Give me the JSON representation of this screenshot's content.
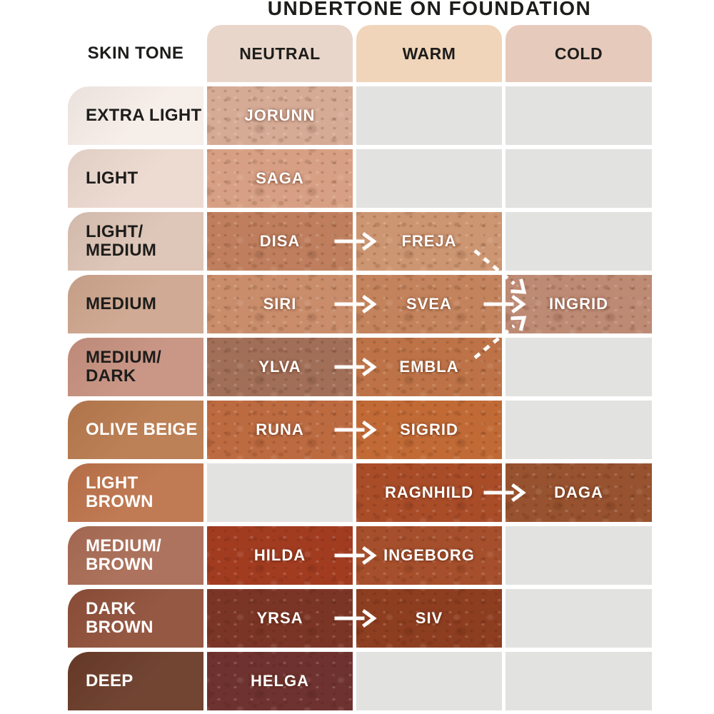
{
  "title": "UNDERTONE ON FOUNDATION",
  "skin_tone_header": "SKIN TONE",
  "colors": {
    "page_bg": "#ffffff",
    "empty": "#e2e2e1",
    "arrow": "#ffffff",
    "text_dark": "#1d1d1b",
    "text_light": "#ffffff"
  },
  "undertone_headers": [
    {
      "label": "NEUTRAL",
      "color": "#e9d6ca"
    },
    {
      "label": "WARM",
      "color": "#f0d5ba"
    },
    {
      "label": "COLD",
      "color": "#e6cabb"
    }
  ],
  "rows": [
    {
      "skin_tone": "EXTRA LIGHT",
      "label_color": "#f6ede8",
      "label_text": "#1d1d1b",
      "cells": {
        "neutral": {
          "name": "JORUNN",
          "color": "#d5ab96"
        },
        "warm": null,
        "cold": null
      }
    },
    {
      "skin_tone": "LIGHT",
      "label_color": "#ecd9cf",
      "label_text": "#1d1d1b",
      "cells": {
        "neutral": {
          "name": "SAGA",
          "color": "#d7a084"
        },
        "warm": null,
        "cold": null
      }
    },
    {
      "skin_tone": "LIGHT/\nMEDIUM",
      "label_color": "#dcc3b4",
      "label_text": "#1d1d1b",
      "cells": {
        "neutral": {
          "name": "DISA",
          "color": "#bf7f5e"
        },
        "warm": {
          "name": "FREJA",
          "color": "#cd9672"
        },
        "cold": null
      }
    },
    {
      "skin_tone": "MEDIUM",
      "label_color": "#cfa68f",
      "label_text": "#1d1d1b",
      "cells": {
        "neutral": {
          "name": "SIRI",
          "color": "#c98d6b"
        },
        "warm": {
          "name": "SVEA",
          "color": "#c3835c"
        },
        "cold": {
          "name": "INGRID",
          "color": "#bd8a74"
        }
      }
    },
    {
      "skin_tone": "MEDIUM/\nDARK",
      "label_color": "#c79180",
      "label_text": "#1d1d1b",
      "cells": {
        "neutral": {
          "name": "YLVA",
          "color": "#a16f58"
        },
        "warm": {
          "name": "EMBLA",
          "color": "#bd7347"
        },
        "cold": null
      }
    },
    {
      "skin_tone": "OLIVE BEIGE",
      "label_color": "#b97a4e",
      "label_text": "#ffffff",
      "cells": {
        "neutral": {
          "name": "RUNA",
          "color": "#bc6a40"
        },
        "warm": {
          "name": "SIGRID",
          "color": "#c16a36"
        },
        "cold": null
      }
    },
    {
      "skin_tone": "LIGHT BROWN",
      "label_color": "#bd734b",
      "label_text": "#ffffff",
      "cells": {
        "neutral": null,
        "warm": {
          "name": "RAGNHILD",
          "color": "#a94c28"
        },
        "cold": {
          "name": "DAGA",
          "color": "#97522f"
        }
      }
    },
    {
      "skin_tone": "MEDIUM/\nBROWN",
      "label_color": "#a96c55",
      "label_text": "#ffffff",
      "cells": {
        "neutral": {
          "name": "HILDA",
          "color": "#a23c21"
        },
        "warm": {
          "name": "INGEBORG",
          "color": "#a64f2c"
        },
        "cold": null
      }
    },
    {
      "skin_tone": "DARK BROWN",
      "label_color": "#8f4f39",
      "label_text": "#ffffff",
      "cells": {
        "neutral": {
          "name": "YRSA",
          "color": "#7b3526"
        },
        "warm": {
          "name": "SIV",
          "color": "#8d3d20"
        },
        "cold": null
      }
    },
    {
      "skin_tone": "DEEP",
      "label_color": "#6a3b28",
      "label_text": "#ffffff",
      "cells": {
        "neutral": {
          "name": "HELGA",
          "color": "#6e3230"
        },
        "warm": null,
        "cold": null
      }
    }
  ],
  "arrows": {
    "solid": [
      {
        "row": 2,
        "from": "neutral",
        "to": "warm",
        "label": "DISA to FREJA"
      },
      {
        "row": 3,
        "from": "neutral",
        "to": "warm",
        "label": "SIRI to SVEA"
      },
      {
        "row": 3,
        "from": "warm",
        "to": "cold",
        "label": "SVEA to INGRID"
      },
      {
        "row": 4,
        "from": "neutral",
        "to": "warm",
        "label": "YLVA to EMBLA"
      },
      {
        "row": 5,
        "from": "neutral",
        "to": "warm",
        "label": "RUNA to SIGRID"
      },
      {
        "row": 6,
        "from": "warm",
        "to": "cold",
        "label": "RAGNHILD to DAGA"
      },
      {
        "row": 7,
        "from": "neutral",
        "to": "warm",
        "label": "HILDA to INGEBORG"
      },
      {
        "row": 8,
        "from": "neutral",
        "to": "warm",
        "label": "YRSA to SIV"
      }
    ],
    "dashed": [
      {
        "fromRow": 2,
        "fromCol": "warm",
        "toRow": 3,
        "toCol": "cold",
        "label": "FREJA to INGRID"
      },
      {
        "fromRow": 4,
        "fromCol": "warm",
        "toRow": 3,
        "toCol": "cold",
        "label": "EMBLA to INGRID"
      }
    ]
  },
  "chart_data": {
    "type": "table",
    "title": "UNDERTONE ON FOUNDATION",
    "columns": [
      "SKIN TONE",
      "NEUTRAL",
      "WARM",
      "COLD"
    ],
    "rows": [
      [
        "EXTRA LIGHT",
        "JORUNN",
        "",
        ""
      ],
      [
        "LIGHT",
        "SAGA",
        "",
        ""
      ],
      [
        "LIGHT/MEDIUM",
        "DISA",
        "FREJA",
        ""
      ],
      [
        "MEDIUM",
        "SIRI",
        "SVEA",
        "INGRID"
      ],
      [
        "MEDIUM/DARK",
        "YLVA",
        "EMBLA",
        ""
      ],
      [
        "OLIVE BEIGE",
        "RUNA",
        "SIGRID",
        ""
      ],
      [
        "LIGHT BROWN",
        "",
        "RAGNHILD",
        "DAGA"
      ],
      [
        "MEDIUM/BROWN",
        "HILDA",
        "INGEBORG",
        ""
      ],
      [
        "DARK BROWN",
        "YRSA",
        "SIV",
        ""
      ],
      [
        "DEEP",
        "HELGA",
        "",
        ""
      ]
    ],
    "solid_arrows": [
      "DISA→FREJA",
      "SIRI→SVEA",
      "SVEA→INGRID",
      "YLVA→EMBLA",
      "RUNA→SIGRID",
      "RAGNHILD→DAGA",
      "HILDA→INGEBORG",
      "YRSA→SIV"
    ],
    "dashed_arrows": [
      "FREJA→INGRID",
      "EMBLA→INGRID"
    ]
  }
}
